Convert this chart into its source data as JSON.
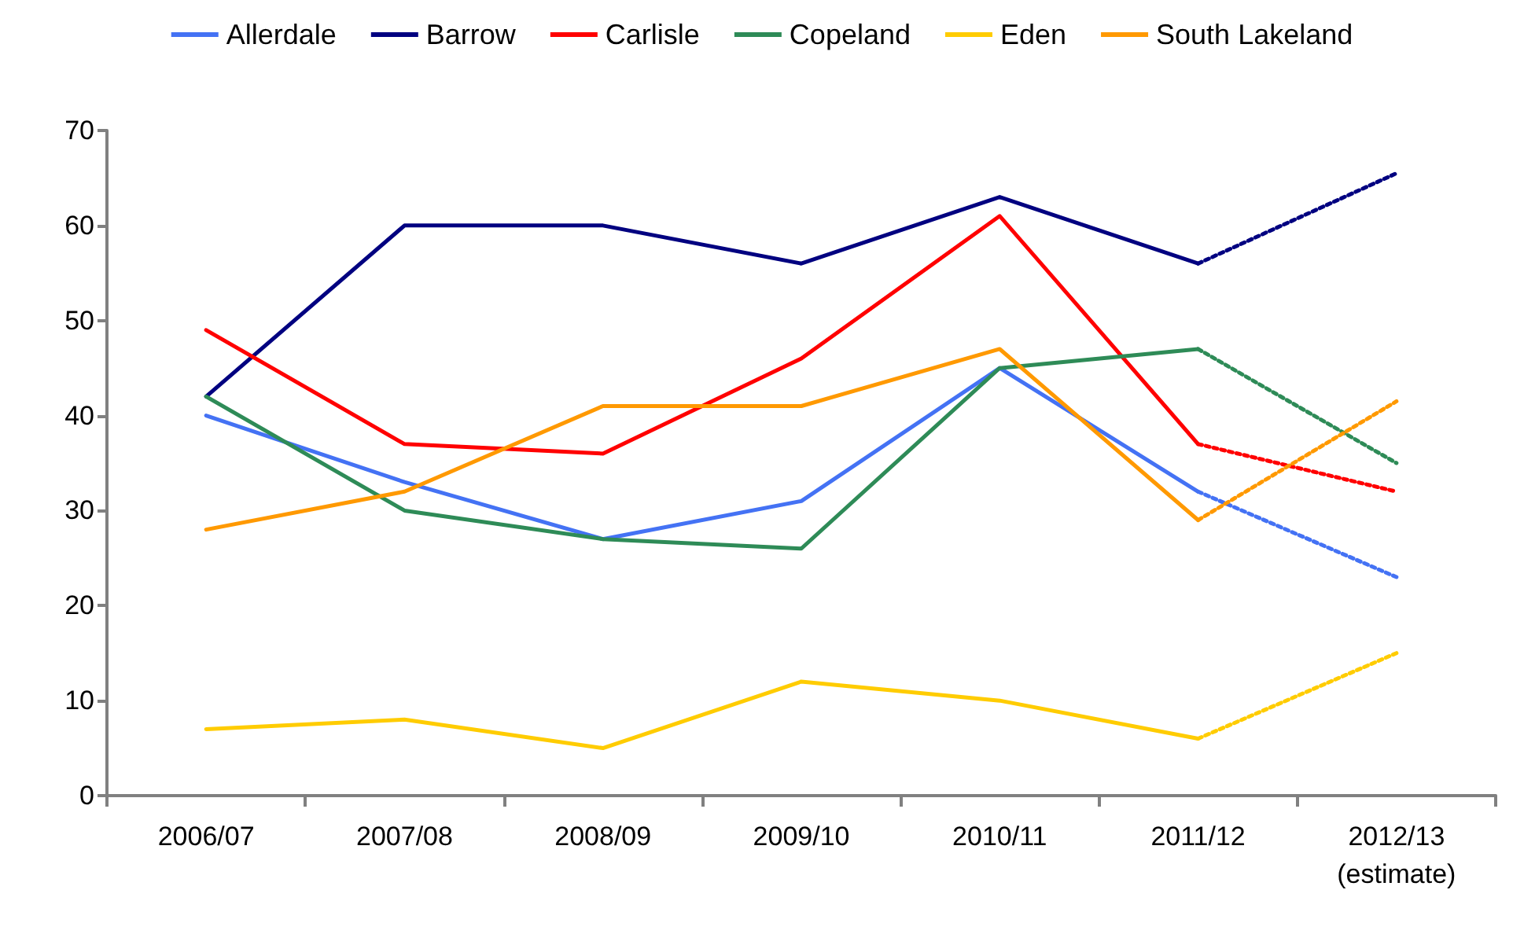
{
  "chart_data": {
    "type": "line",
    "categories": [
      "2006/07",
      "2007/08",
      "2008/09",
      "2009/10",
      "2010/11",
      "2011/12",
      "2012/13\n(estimate)"
    ],
    "series": [
      {
        "name": "Allerdale",
        "color": "#4472f4",
        "values": [
          40,
          33,
          27,
          31,
          45,
          32,
          null
        ]
      },
      {
        "name": "Barrow",
        "color": "#000080",
        "values": [
          42,
          60,
          60,
          56,
          63,
          56,
          null
        ]
      },
      {
        "name": "Carlisle",
        "color": "#ff0000",
        "values": [
          49,
          37,
          36,
          46,
          61,
          37,
          null
        ]
      },
      {
        "name": "Copeland",
        "color": "#2e8b57",
        "values": [
          42,
          30,
          27,
          26,
          45,
          47,
          null
        ]
      },
      {
        "name": "Eden",
        "color": "#ffcc00",
        "values": [
          7,
          8,
          5,
          12,
          10,
          6,
          null
        ]
      },
      {
        "name": "South Lakeland",
        "color": "#ff9900",
        "values": [
          28,
          32,
          41,
          41,
          47,
          29,
          null
        ]
      },
      {
        "color": "#4472f4",
        "line_style": "dotted",
        "values": [
          null,
          null,
          null,
          null,
          null,
          32,
          23
        ]
      },
      {
        "color": "#000080",
        "line_style": "dotted",
        "values": [
          null,
          null,
          null,
          null,
          null,
          56,
          65.5
        ]
      },
      {
        "color": "#ff0000",
        "line_style": "dotted",
        "values": [
          null,
          null,
          null,
          null,
          null,
          37,
          32
        ]
      },
      {
        "color": "#2e8b57",
        "line_style": "dotted",
        "values": [
          null,
          null,
          null,
          null,
          null,
          47,
          35
        ]
      },
      {
        "color": "#ffcc00",
        "line_style": "dotted",
        "values": [
          null,
          null,
          null,
          null,
          null,
          6,
          15
        ]
      },
      {
        "color": "#ff9900",
        "line_style": "dotted",
        "values": [
          null,
          null,
          null,
          null,
          null,
          29,
          41.5
        ]
      }
    ],
    "ylim": [
      0,
      70
    ],
    "yticks": [
      0,
      10,
      20,
      30,
      40,
      50,
      60,
      70
    ],
    "grid": false,
    "legend": "top",
    "marker": "none",
    "line_style": "solid"
  }
}
